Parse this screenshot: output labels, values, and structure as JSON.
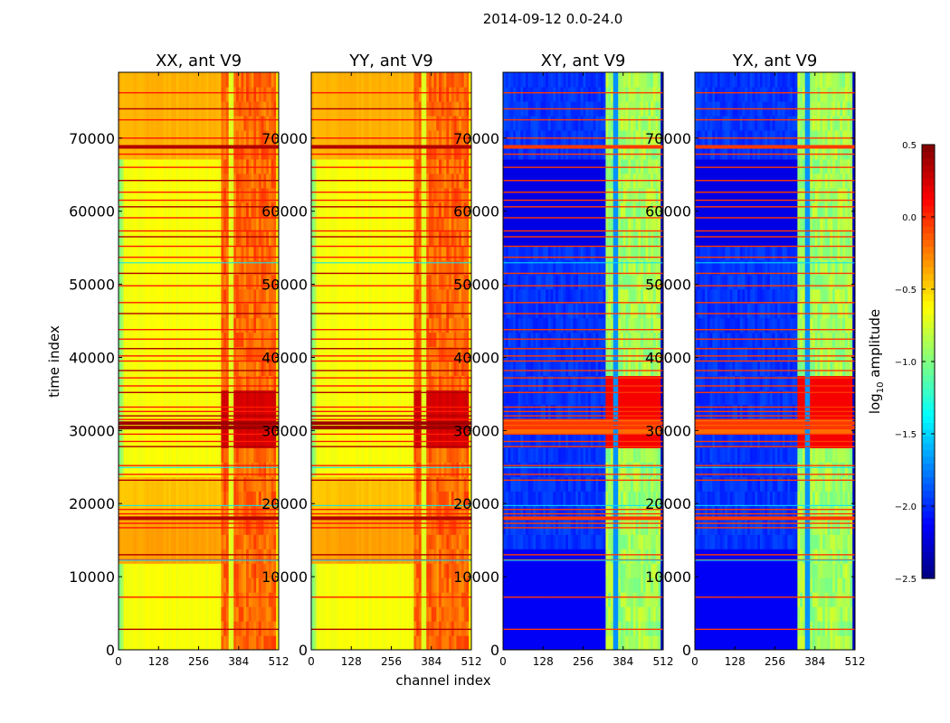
{
  "figure": {
    "suptitle": "2014-09-12 0.0-24.0",
    "colormap": "jet",
    "xlabel": "channel index",
    "ylabel": "time index"
  },
  "chart_data": {
    "type": "heatmap",
    "x_range": [
      0,
      512
    ],
    "y_range": [
      0,
      79000
    ],
    "xticks": [
      0,
      128,
      256,
      384,
      512
    ],
    "yticks": [
      0,
      10000,
      20000,
      30000,
      40000,
      50000,
      60000,
      70000
    ],
    "panels": [
      {
        "title": "XX, ant V9",
        "style": "autocorr"
      },
      {
        "title": "YY, ant V9",
        "style": "autocorr"
      },
      {
        "title": "XY, ant V9",
        "style": "cross"
      },
      {
        "title": "YX, ant V9",
        "style": "cross"
      }
    ],
    "colorbar": {
      "label": "log10 amplitude",
      "label_base": "log",
      "label_sub": "10",
      "label_rest": " amplitude",
      "range": [
        -2.5,
        0.5
      ],
      "ticks": [
        0.5,
        0.0,
        -0.5,
        -1.0,
        -1.5,
        -2.0,
        -2.5
      ],
      "tick_labels": [
        "0.5",
        "0.0",
        "−0.5",
        "−1.0",
        "−1.5",
        "−2.0",
        "−2.5"
      ]
    },
    "flag_rows_time_index": [
      2800,
      7200,
      12300,
      13000,
      16700,
      17300,
      18000,
      18600,
      19200,
      23200,
      24000,
      25200,
      27800,
      28500,
      29500,
      30400,
      31000,
      31500,
      32000,
      32600,
      33200,
      35200,
      36100,
      37200,
      38200,
      39500,
      40200,
      41200,
      42500,
      43800,
      46000,
      47500,
      49800,
      51500,
      53700,
      55200,
      56500,
      57300,
      59100,
      60600,
      61500,
      62600,
      64200,
      66000,
      67800,
      68800,
      70000,
      72500,
      74000,
      76200
    ]
  }
}
